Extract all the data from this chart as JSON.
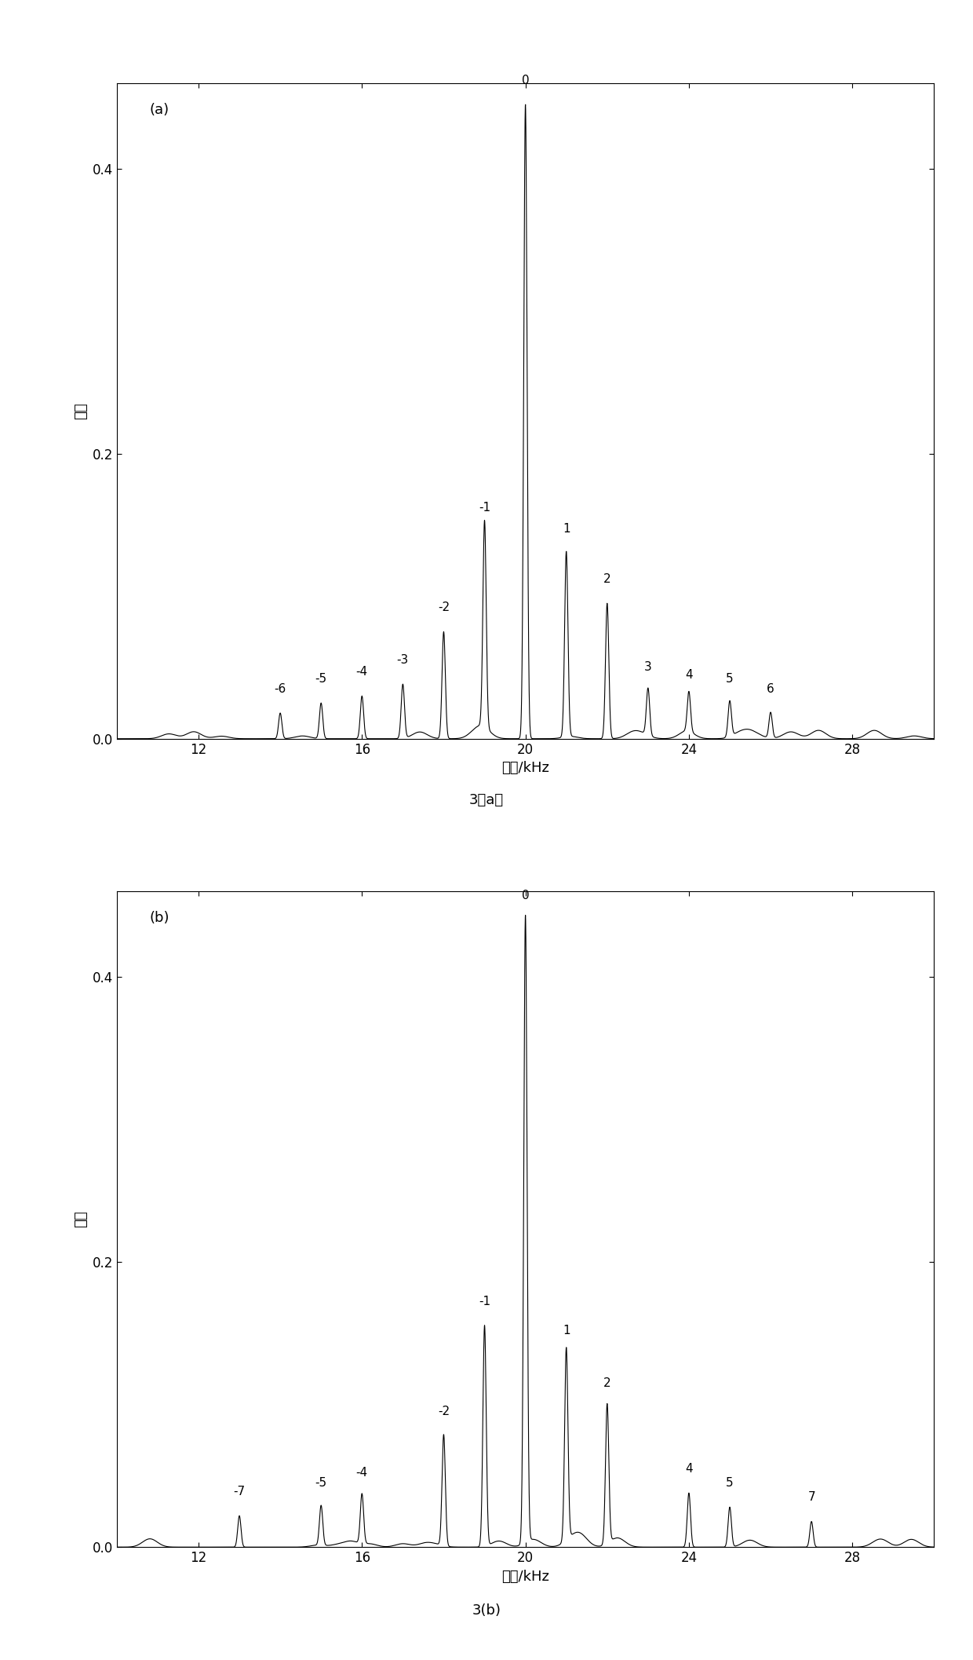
{
  "subplot_a": {
    "label": "(a)",
    "peaks": [
      {
        "freq": 14.0,
        "amp": 0.018,
        "tag": "-6"
      },
      {
        "freq": 15.0,
        "amp": 0.025,
        "tag": "-5"
      },
      {
        "freq": 16.0,
        "amp": 0.03,
        "tag": "-4"
      },
      {
        "freq": 17.0,
        "amp": 0.038,
        "tag": "-3"
      },
      {
        "freq": 18.0,
        "amp": 0.075,
        "tag": "-2"
      },
      {
        "freq": 19.0,
        "amp": 0.145,
        "tag": "-1"
      },
      {
        "freq": 20.0,
        "amp": 0.445,
        "tag": "0"
      },
      {
        "freq": 21.0,
        "amp": 0.13,
        "tag": "1"
      },
      {
        "freq": 22.0,
        "amp": 0.095,
        "tag": "2"
      },
      {
        "freq": 23.0,
        "amp": 0.033,
        "tag": "3"
      },
      {
        "freq": 24.0,
        "amp": 0.028,
        "tag": "4"
      },
      {
        "freq": 25.0,
        "amp": 0.025,
        "tag": "5"
      },
      {
        "freq": 26.0,
        "amp": 0.018,
        "tag": "6"
      }
    ],
    "xlim": [
      10,
      30
    ],
    "ylim": [
      0,
      0.46
    ],
    "yticks": [
      0.0,
      0.2,
      0.4
    ],
    "xticks": [
      12,
      16,
      20,
      24,
      28
    ],
    "xlabel": "频率/kHz",
    "ylabel": "幅値",
    "caption": "3（a）"
  },
  "subplot_b": {
    "label": "(b)",
    "peaks": [
      {
        "freq": 13.0,
        "amp": 0.022,
        "tag": "-7"
      },
      {
        "freq": 15.0,
        "amp": 0.028,
        "tag": "-5"
      },
      {
        "freq": 16.0,
        "amp": 0.035,
        "tag": "-4"
      },
      {
        "freq": 18.0,
        "amp": 0.078,
        "tag": "-2"
      },
      {
        "freq": 19.0,
        "amp": 0.155,
        "tag": "-1"
      },
      {
        "freq": 20.0,
        "amp": 0.44,
        "tag": "0"
      },
      {
        "freq": 21.0,
        "amp": 0.135,
        "tag": "1"
      },
      {
        "freq": 22.0,
        "amp": 0.098,
        "tag": "2"
      },
      {
        "freq": 24.0,
        "amp": 0.038,
        "tag": "4"
      },
      {
        "freq": 25.0,
        "amp": 0.028,
        "tag": "5"
      },
      {
        "freq": 27.0,
        "amp": 0.018,
        "tag": "7"
      }
    ],
    "xlim": [
      10,
      30
    ],
    "ylim": [
      0,
      0.46
    ],
    "yticks": [
      0.0,
      0.2,
      0.4
    ],
    "xticks": [
      12,
      16,
      20,
      24,
      28
    ],
    "xlabel": "频率/kHz",
    "ylabel": "幅値",
    "caption": "3(b)"
  },
  "line_color": "#000000",
  "line_width": 0.8,
  "background_color": "#ffffff",
  "peak_label_fontsize": 11,
  "axis_label_fontsize": 13,
  "tick_fontsize": 12,
  "caption_fontsize": 13,
  "panel_label_fontsize": 13,
  "peak_sigma": 0.04,
  "noise_sigma": 0.003,
  "noise_bump_sigma": 0.18,
  "noise_bump_count": 20,
  "noise_bump_amp_max": 0.006
}
